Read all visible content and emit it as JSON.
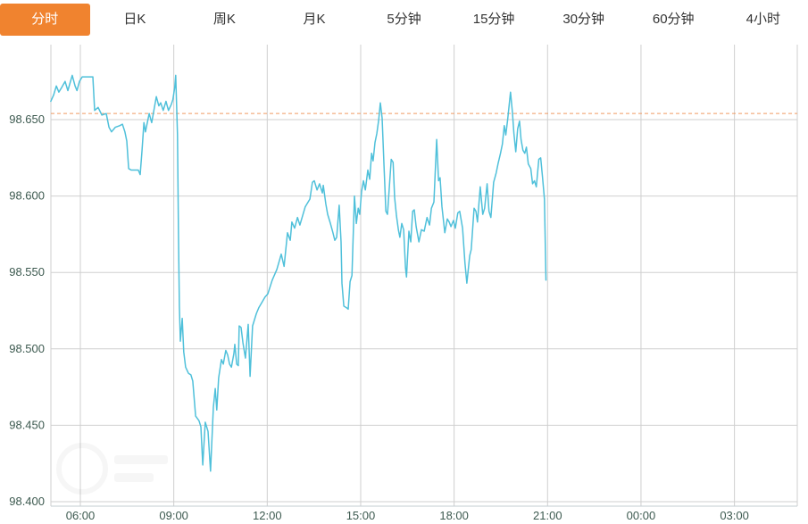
{
  "tabs": {
    "active_label": "分时",
    "items": [
      {
        "name": "tab-fenshi",
        "label": "分时",
        "active": true
      },
      {
        "name": "tab-daily-k",
        "label": "日K",
        "active": false
      },
      {
        "name": "tab-weekly-k",
        "label": "周K",
        "active": false
      },
      {
        "name": "tab-monthly-k",
        "label": "月K",
        "active": false
      },
      {
        "name": "tab-5min",
        "label": "5分钟",
        "active": false
      },
      {
        "name": "tab-15min",
        "label": "15分钟",
        "active": false
      },
      {
        "name": "tab-30min",
        "label": "30分钟",
        "active": false
      },
      {
        "name": "tab-60min",
        "label": "60分钟",
        "active": false
      },
      {
        "name": "tab-4hour",
        "label": "4小时",
        "active": false
      }
    ]
  },
  "colors": {
    "active_tab_bg": "#f0832f",
    "active_tab_text": "#ffffff",
    "tab_text": "#333333",
    "line": "#4fc0da",
    "grid": "#cfcfcf",
    "axis_border": "#c3ccd2",
    "reference_line": "#f09a63",
    "axis_text": "#3d5a50",
    "background": "#ffffff"
  },
  "chart_data": {
    "type": "line",
    "title": "",
    "xlabel": "",
    "ylabel": "",
    "grid": true,
    "legend": "none",
    "x_unit": "hour_of_day",
    "x_visible_range": [
      5.05,
      29.02
    ],
    "ylim": [
      98.388,
      98.695
    ],
    "x_tick_hours": [
      6,
      9,
      12,
      15,
      18,
      21,
      24,
      27
    ],
    "x_tick_labels": [
      "06:00",
      "09:00",
      "12:00",
      "15:00",
      "18:00",
      "21:00",
      "00:00",
      "03:00"
    ],
    "y_tick_values": [
      98.65,
      98.6,
      98.55,
      98.5,
      98.45,
      98.4
    ],
    "y_tick_labels": [
      "98.650",
      "98.600",
      "98.550",
      "98.500",
      "98.450",
      "98.400"
    ],
    "reference_line": {
      "value": 98.654,
      "style": "dashed",
      "color": "#f09a63"
    },
    "series": [
      {
        "name": "price",
        "color": "#4fc0da",
        "points": [
          [
            5.05,
            98.662
          ],
          [
            5.14,
            98.666
          ],
          [
            5.23,
            98.672
          ],
          [
            5.31,
            98.668
          ],
          [
            5.4,
            98.671
          ],
          [
            5.51,
            98.675
          ],
          [
            5.6,
            98.669
          ],
          [
            5.74,
            98.679
          ],
          [
            5.83,
            98.672
          ],
          [
            5.89,
            98.669
          ],
          [
            5.97,
            98.675
          ],
          [
            6.06,
            98.678
          ],
          [
            6.4,
            98.678
          ],
          [
            6.46,
            98.656
          ],
          [
            6.57,
            98.658
          ],
          [
            6.69,
            98.653
          ],
          [
            6.83,
            98.654
          ],
          [
            6.92,
            98.645
          ],
          [
            7.0,
            98.642
          ],
          [
            7.12,
            98.645
          ],
          [
            7.26,
            98.646
          ],
          [
            7.35,
            98.647
          ],
          [
            7.43,
            98.642
          ],
          [
            7.49,
            98.636
          ],
          [
            7.55,
            98.618
          ],
          [
            7.63,
            98.617
          ],
          [
            7.86,
            98.617
          ],
          [
            7.92,
            98.614
          ],
          [
            7.98,
            98.63
          ],
          [
            8.04,
            98.648
          ],
          [
            8.09,
            98.642
          ],
          [
            8.21,
            98.654
          ],
          [
            8.29,
            98.648
          ],
          [
            8.44,
            98.665
          ],
          [
            8.52,
            98.659
          ],
          [
            8.58,
            98.661
          ],
          [
            8.66,
            98.656
          ],
          [
            8.75,
            98.662
          ],
          [
            8.83,
            98.656
          ],
          [
            8.92,
            98.66
          ],
          [
            8.97,
            98.663
          ],
          [
            9.03,
            98.671
          ],
          [
            9.06,
            98.679
          ],
          [
            9.12,
            98.64
          ],
          [
            9.15,
            98.575
          ],
          [
            9.18,
            98.528
          ],
          [
            9.21,
            98.505
          ],
          [
            9.27,
            98.52
          ],
          [
            9.32,
            98.498
          ],
          [
            9.38,
            98.488
          ],
          [
            9.47,
            98.484
          ],
          [
            9.55,
            98.483
          ],
          [
            9.61,
            98.479
          ],
          [
            9.7,
            98.456
          ],
          [
            9.81,
            98.453
          ],
          [
            9.87,
            98.449
          ],
          [
            9.93,
            98.424
          ],
          [
            10.01,
            98.452
          ],
          [
            10.1,
            98.446
          ],
          [
            10.18,
            98.42
          ],
          [
            10.27,
            98.462
          ],
          [
            10.33,
            98.474
          ],
          [
            10.38,
            98.46
          ],
          [
            10.44,
            98.481
          ],
          [
            10.53,
            98.493
          ],
          [
            10.59,
            98.49
          ],
          [
            10.67,
            98.499
          ],
          [
            10.73,
            98.496
          ],
          [
            10.79,
            98.49
          ],
          [
            10.85,
            98.488
          ],
          [
            10.93,
            98.497
          ],
          [
            10.96,
            98.503
          ],
          [
            11.02,
            98.49
          ],
          [
            11.07,
            98.489
          ],
          [
            11.1,
            98.515
          ],
          [
            11.16,
            98.514
          ],
          [
            11.22,
            98.504
          ],
          [
            11.3,
            98.494
          ],
          [
            11.39,
            98.516
          ],
          [
            11.45,
            98.482
          ],
          [
            11.53,
            98.515
          ],
          [
            11.65,
            98.523
          ],
          [
            11.73,
            98.527
          ],
          [
            11.82,
            98.53
          ],
          [
            11.93,
            98.534
          ],
          [
            12.02,
            98.536
          ],
          [
            12.16,
            98.545
          ],
          [
            12.31,
            98.552
          ],
          [
            12.45,
            98.562
          ],
          [
            12.54,
            98.554
          ],
          [
            12.65,
            98.576
          ],
          [
            12.74,
            98.571
          ],
          [
            12.79,
            98.583
          ],
          [
            12.88,
            98.579
          ],
          [
            12.97,
            98.586
          ],
          [
            13.05,
            98.581
          ],
          [
            13.22,
            98.593
          ],
          [
            13.37,
            98.598
          ],
          [
            13.45,
            98.609
          ],
          [
            13.51,
            98.61
          ],
          [
            13.6,
            98.604
          ],
          [
            13.68,
            98.608
          ],
          [
            13.77,
            98.602
          ],
          [
            13.8,
            98.607
          ],
          [
            13.88,
            98.595
          ],
          [
            13.94,
            98.588
          ],
          [
            14.03,
            98.582
          ],
          [
            14.11,
            98.576
          ],
          [
            14.17,
            98.571
          ],
          [
            14.23,
            98.573
          ],
          [
            14.31,
            98.594
          ],
          [
            14.37,
            98.57
          ],
          [
            14.4,
            98.543
          ],
          [
            14.46,
            98.528
          ],
          [
            14.54,
            98.527
          ],
          [
            14.6,
            98.526
          ],
          [
            14.66,
            98.544
          ],
          [
            14.72,
            98.548
          ],
          [
            14.8,
            98.6
          ],
          [
            14.86,
            98.582
          ],
          [
            14.92,
            98.592
          ],
          [
            14.97,
            98.588
          ],
          [
            15.03,
            98.603
          ],
          [
            15.09,
            98.61
          ],
          [
            15.15,
            98.604
          ],
          [
            15.23,
            98.617
          ],
          [
            15.29,
            98.611
          ],
          [
            15.35,
            98.628
          ],
          [
            15.4,
            98.623
          ],
          [
            15.46,
            98.635
          ],
          [
            15.52,
            98.641
          ],
          [
            15.58,
            98.65
          ],
          [
            15.63,
            98.661
          ],
          [
            15.69,
            98.651
          ],
          [
            15.75,
            98.62
          ],
          [
            15.81,
            98.59
          ],
          [
            15.86,
            98.588
          ],
          [
            15.92,
            98.606
          ],
          [
            15.98,
            98.624
          ],
          [
            16.04,
            98.622
          ],
          [
            16.09,
            98.599
          ],
          [
            16.15,
            98.587
          ],
          [
            16.21,
            98.578
          ],
          [
            16.26,
            98.573
          ],
          [
            16.32,
            98.582
          ],
          [
            16.38,
            98.578
          ],
          [
            16.44,
            98.553
          ],
          [
            16.47,
            98.547
          ],
          [
            16.55,
            98.577
          ],
          [
            16.61,
            98.57
          ],
          [
            16.67,
            98.59
          ],
          [
            16.72,
            98.591
          ],
          [
            16.78,
            98.58
          ],
          [
            16.87,
            98.57
          ],
          [
            16.95,
            98.578
          ],
          [
            17.04,
            98.577
          ],
          [
            17.13,
            98.586
          ],
          [
            17.21,
            98.581
          ],
          [
            17.27,
            98.592
          ],
          [
            17.35,
            98.596
          ],
          [
            17.44,
            98.637
          ],
          [
            17.5,
            98.61
          ],
          [
            17.55,
            98.612
          ],
          [
            17.61,
            98.593
          ],
          [
            17.7,
            98.576
          ],
          [
            17.78,
            98.585
          ],
          [
            17.84,
            98.583
          ],
          [
            17.9,
            98.58
          ],
          [
            17.98,
            98.584
          ],
          [
            18.04,
            98.579
          ],
          [
            18.12,
            98.589
          ],
          [
            18.18,
            98.59
          ],
          [
            18.27,
            98.579
          ],
          [
            18.35,
            98.556
          ],
          [
            18.41,
            98.543
          ],
          [
            18.5,
            98.561
          ],
          [
            18.55,
            98.565
          ],
          [
            18.64,
            98.592
          ],
          [
            18.7,
            98.59
          ],
          [
            18.75,
            98.583
          ],
          [
            18.84,
            98.606
          ],
          [
            18.92,
            98.588
          ],
          [
            18.98,
            98.592
          ],
          [
            19.06,
            98.608
          ],
          [
            19.12,
            98.59
          ],
          [
            19.18,
            98.586
          ],
          [
            19.27,
            98.609
          ],
          [
            19.35,
            98.615
          ],
          [
            19.41,
            98.621
          ],
          [
            19.49,
            98.628
          ],
          [
            19.55,
            98.634
          ],
          [
            19.61,
            98.646
          ],
          [
            19.66,
            98.64
          ],
          [
            19.72,
            98.65
          ],
          [
            19.81,
            98.668
          ],
          [
            19.87,
            98.655
          ],
          [
            19.92,
            98.641
          ],
          [
            19.98,
            98.629
          ],
          [
            20.04,
            98.644
          ],
          [
            20.1,
            98.649
          ],
          [
            20.15,
            98.637
          ],
          [
            20.21,
            98.63
          ],
          [
            20.27,
            98.628
          ],
          [
            20.32,
            98.632
          ],
          [
            20.38,
            98.621
          ],
          [
            20.46,
            98.618
          ],
          [
            20.52,
            98.608
          ],
          [
            20.58,
            98.61
          ],
          [
            20.64,
            98.606
          ],
          [
            20.72,
            98.624
          ],
          [
            20.78,
            98.625
          ],
          [
            20.84,
            98.612
          ],
          [
            20.9,
            98.598
          ],
          [
            20.95,
            98.545
          ]
        ]
      }
    ]
  }
}
